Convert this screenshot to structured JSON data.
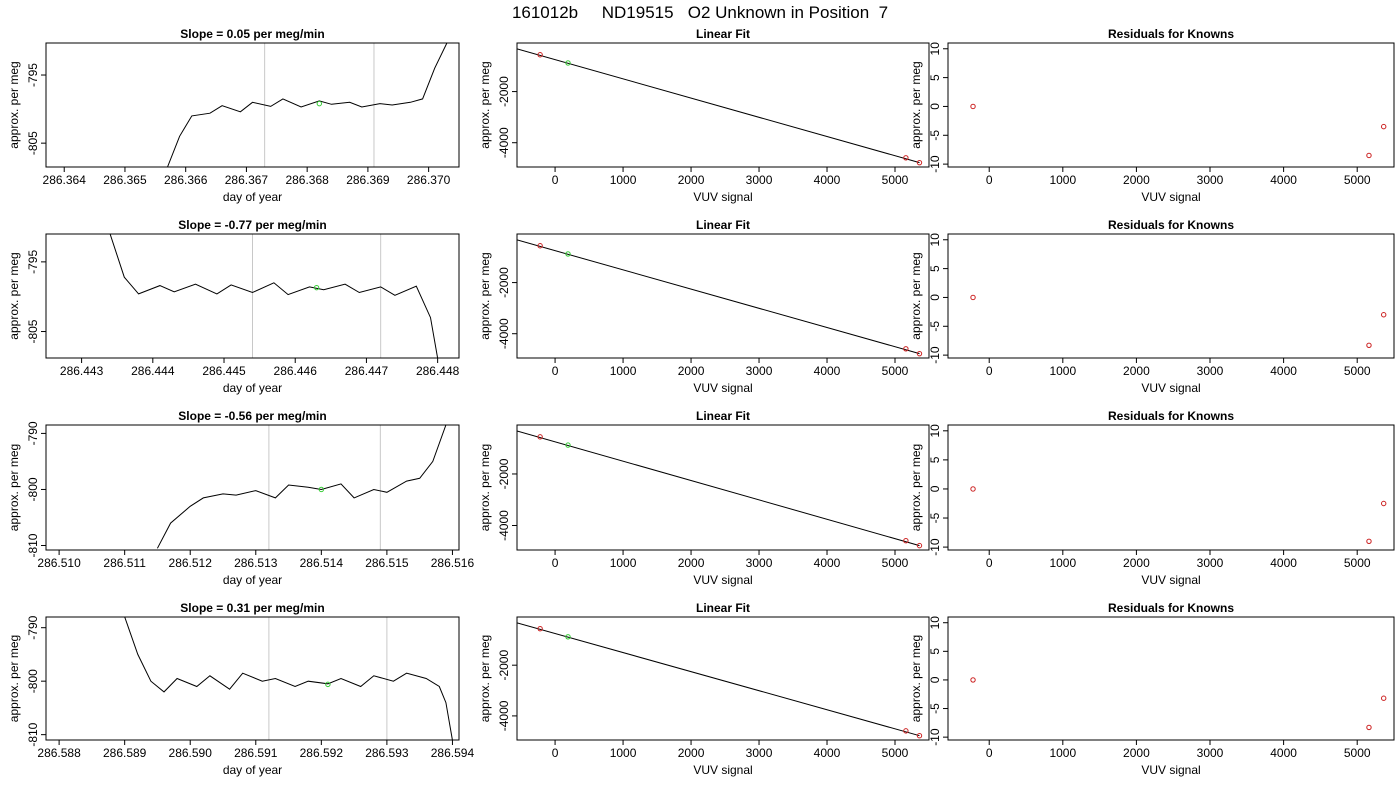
{
  "figure_title": "161012b     ND19515   O2 Unknown in Position  7",
  "chart_data": [
    {
      "type": "line",
      "panel": "timeseries",
      "title": "Slope =  0.05  per meg/min",
      "xlabel": "day of year",
      "ylabel": "approx. per meg",
      "xlim": [
        286.3637,
        286.3705
      ],
      "ylim": [
        -808.5,
        -790.3
      ],
      "xticks": [
        286.364,
        286.365,
        286.366,
        286.367,
        286.368,
        286.369,
        286.37
      ],
      "xtick_labels": [
        "286.364",
        "286.365",
        "286.366",
        "286.367",
        "286.368",
        "286.369",
        "286.370"
      ],
      "yticks": [
        -795,
        -805
      ],
      "ytick_labels": [
        "-795",
        "-805"
      ],
      "vlines": [
        286.3673,
        286.3691
      ],
      "series": [
        {
          "x": [
            286.3657,
            286.3659,
            286.3661,
            286.3664,
            286.3666,
            286.3669,
            286.3671,
            286.3674,
            286.3676,
            286.3679,
            286.3682,
            286.3684,
            286.3687,
            286.3689,
            286.3692,
            286.3694,
            286.3697,
            286.3699,
            286.3701,
            286.3703
          ],
          "y": [
            -808.5,
            -804.0,
            -801.0,
            -800.6,
            -799.5,
            -800.4,
            -799.0,
            -799.6,
            -798.5,
            -799.7,
            -798.8,
            -799.3,
            -799.0,
            -799.7,
            -799.2,
            -799.4,
            -799.0,
            -798.5,
            -794.0,
            -790.3
          ]
        }
      ],
      "green_point": {
        "x": 286.3682,
        "y": -799.2
      }
    },
    {
      "type": "scatter",
      "panel": "linear-fit",
      "title": "Linear Fit",
      "xlabel": "VUV signal",
      "ylabel": "approx. per meg",
      "xlim": [
        -560,
        5500
      ],
      "ylim": [
        -4950,
        -100
      ],
      "xticks": [
        0,
        1000,
        2000,
        3000,
        4000,
        5000
      ],
      "xtick_labels": [
        "0",
        "1000",
        "2000",
        "3000",
        "4000",
        "5000"
      ],
      "yticks": [
        -2000,
        -4000
      ],
      "ytick_labels": [
        "-2000",
        "-4000"
      ],
      "fit_line": {
        "x": [
          -560,
          5360
        ],
        "y": [
          -330,
          -4780
        ]
      },
      "known_points": {
        "x": [
          -220,
          5160,
          5360
        ],
        "y": [
          -560,
          -4590,
          -4780
        ]
      },
      "unknown_point": {
        "x": 190,
        "y": -880
      }
    },
    {
      "type": "scatter",
      "panel": "residuals",
      "title": "Residuals for Knowns",
      "xlabel": "VUV signal",
      "ylabel": "approx. per meg",
      "xlim": [
        -560,
        5500
      ],
      "ylim": [
        -10.5,
        11
      ],
      "xticks": [
        0,
        1000,
        2000,
        3000,
        4000,
        5000
      ],
      "xtick_labels": [
        "0",
        "1000",
        "2000",
        "3000",
        "4000",
        "5000"
      ],
      "yticks": [
        10,
        5,
        0,
        -5,
        -10
      ],
      "ytick_labels": [
        "10",
        "5",
        "0",
        "-5",
        "-10"
      ],
      "points": {
        "x": [
          -220,
          5160,
          5360
        ],
        "y": [
          0,
          -8.5,
          -3.5
        ]
      }
    },
    {
      "type": "line",
      "panel": "timeseries",
      "title": "Slope =  -0.77  per meg/min",
      "xlabel": "day of year",
      "ylabel": "approx. per meg",
      "xlim": [
        286.4425,
        286.4483
      ],
      "ylim": [
        -808.8,
        -791.0
      ],
      "xticks": [
        286.443,
        286.444,
        286.445,
        286.446,
        286.447,
        286.448
      ],
      "xtick_labels": [
        "286.443",
        "286.444",
        "286.445",
        "286.446",
        "286.447",
        "286.448"
      ],
      "yticks": [
        -795,
        -805
      ],
      "ytick_labels": [
        "-795",
        "-805"
      ],
      "vlines": [
        286.4454,
        286.4472
      ],
      "series": [
        {
          "x": [
            286.4434,
            286.4436,
            286.4438,
            286.4441,
            286.4443,
            286.4446,
            286.4449,
            286.4451,
            286.4454,
            286.4457,
            286.4459,
            286.4462,
            286.4464,
            286.4467,
            286.4469,
            286.4472,
            286.4474,
            286.4477,
            286.4479,
            286.448
          ],
          "y": [
            -791.0,
            -797.2,
            -799.6,
            -798.4,
            -799.3,
            -798.2,
            -799.6,
            -798.3,
            -799.4,
            -798.0,
            -799.7,
            -798.6,
            -799.0,
            -798.2,
            -799.4,
            -798.6,
            -799.8,
            -798.5,
            -803.0,
            -808.8
          ]
        }
      ],
      "green_point": {
        "x": 286.4463,
        "y": -798.7
      }
    },
    {
      "type": "scatter",
      "panel": "linear-fit",
      "title": "Linear Fit",
      "xlabel": "VUV signal",
      "ylabel": "approx. per meg",
      "xlim": [
        -560,
        5500
      ],
      "ylim": [
        -4950,
        -100
      ],
      "xticks": [
        0,
        1000,
        2000,
        3000,
        4000,
        5000
      ],
      "xtick_labels": [
        "0",
        "1000",
        "2000",
        "3000",
        "4000",
        "5000"
      ],
      "yticks": [
        -2000,
        -4000
      ],
      "ytick_labels": [
        "-2000",
        "-4000"
      ],
      "fit_line": {
        "x": [
          -560,
          5360
        ],
        "y": [
          -330,
          -4780
        ]
      },
      "known_points": {
        "x": [
          -220,
          5160,
          5360
        ],
        "y": [
          -560,
          -4590,
          -4780
        ]
      },
      "unknown_point": {
        "x": 190,
        "y": -880
      }
    },
    {
      "type": "scatter",
      "panel": "residuals",
      "title": "Residuals for Knowns",
      "xlabel": "VUV signal",
      "ylabel": "approx. per meg",
      "xlim": [
        -560,
        5500
      ],
      "ylim": [
        -10.5,
        11
      ],
      "xticks": [
        0,
        1000,
        2000,
        3000,
        4000,
        5000
      ],
      "xtick_labels": [
        "0",
        "1000",
        "2000",
        "3000",
        "4000",
        "5000"
      ],
      "yticks": [
        10,
        5,
        0,
        -5,
        -10
      ],
      "ytick_labels": [
        "10",
        "5",
        "0",
        "-5",
        "-10"
      ],
      "points": {
        "x": [
          -220,
          5160,
          5360
        ],
        "y": [
          0,
          -8.3,
          -3.0
        ]
      }
    },
    {
      "type": "line",
      "panel": "timeseries",
      "title": "Slope =  -0.56  per meg/min",
      "xlabel": "day of year",
      "ylabel": "approx. per meg",
      "xlim": [
        286.5098,
        286.5161
      ],
      "ylim": [
        -810.8,
        -788.5
      ],
      "xticks": [
        286.51,
        286.511,
        286.512,
        286.513,
        286.514,
        286.515,
        286.516
      ],
      "xtick_labels": [
        "286.510",
        "286.511",
        "286.512",
        "286.513",
        "286.514",
        "286.515",
        "286.516"
      ],
      "yticks": [
        -790,
        -800,
        -810
      ],
      "ytick_labels": [
        "-790",
        "-800",
        "-810"
      ],
      "vlines": [
        286.5132,
        286.5149
      ],
      "series": [
        {
          "x": [
            286.5115,
            286.5117,
            286.512,
            286.5122,
            286.5125,
            286.5127,
            286.513,
            286.5133,
            286.5135,
            286.5138,
            286.514,
            286.5143,
            286.5145,
            286.5148,
            286.515,
            286.5153,
            286.5155,
            286.5157,
            286.5159
          ],
          "y": [
            -810.5,
            -806.0,
            -803.0,
            -801.5,
            -800.8,
            -801.0,
            -800.2,
            -801.5,
            -799.2,
            -799.6,
            -800.0,
            -799.0,
            -801.5,
            -800.0,
            -800.5,
            -798.5,
            -798.0,
            -795.0,
            -788.5
          ]
        }
      ],
      "green_point": {
        "x": 286.514,
        "y": -800.0
      }
    },
    {
      "type": "scatter",
      "panel": "linear-fit",
      "title": "Linear Fit",
      "xlabel": "VUV signal",
      "ylabel": "approx. per meg",
      "xlim": [
        -560,
        5500
      ],
      "ylim": [
        -4950,
        -100
      ],
      "xticks": [
        0,
        1000,
        2000,
        3000,
        4000,
        5000
      ],
      "xtick_labels": [
        "0",
        "1000",
        "2000",
        "3000",
        "4000",
        "5000"
      ],
      "yticks": [
        -2000,
        -4000
      ],
      "ytick_labels": [
        "-2000",
        "-4000"
      ],
      "fit_line": {
        "x": [
          -560,
          5360
        ],
        "y": [
          -330,
          -4780
        ]
      },
      "known_points": {
        "x": [
          -220,
          5160,
          5360
        ],
        "y": [
          -560,
          -4590,
          -4780
        ]
      },
      "unknown_point": {
        "x": 190,
        "y": -880
      }
    },
    {
      "type": "scatter",
      "panel": "residuals",
      "title": "Residuals for Knowns",
      "xlabel": "VUV signal",
      "ylabel": "approx. per meg",
      "xlim": [
        -560,
        5500
      ],
      "ylim": [
        -10.5,
        11
      ],
      "xticks": [
        0,
        1000,
        2000,
        3000,
        4000,
        5000
      ],
      "xtick_labels": [
        "0",
        "1000",
        "2000",
        "3000",
        "4000",
        "5000"
      ],
      "yticks": [
        10,
        5,
        0,
        -5,
        -10
      ],
      "ytick_labels": [
        "10",
        "5",
        "0",
        "-5",
        "-10"
      ],
      "points": {
        "x": [
          -220,
          5160,
          5360
        ],
        "y": [
          0,
          -9.0,
          -2.5
        ]
      }
    },
    {
      "type": "line",
      "panel": "timeseries",
      "title": "Slope =  0.31  per meg/min",
      "xlabel": "day of year",
      "ylabel": "approx. per meg",
      "xlim": [
        286.5878,
        286.5941
      ],
      "ylim": [
        -811.0,
        -788.0
      ],
      "xticks": [
        286.588,
        286.589,
        286.59,
        286.591,
        286.592,
        286.593,
        286.594
      ],
      "xtick_labels": [
        "286.588",
        "286.589",
        "286.590",
        "286.591",
        "286.592",
        "286.593",
        "286.594"
      ],
      "yticks": [
        -790,
        -800,
        -810
      ],
      "ytick_labels": [
        "-790",
        "-800",
        "-810"
      ],
      "vlines": [
        286.5912,
        286.593
      ],
      "series": [
        {
          "x": [
            286.589,
            286.5892,
            286.5894,
            286.5896,
            286.5898,
            286.5901,
            286.5903,
            286.5906,
            286.5908,
            286.5911,
            286.5913,
            286.5916,
            286.5918,
            286.5921,
            286.5923,
            286.5926,
            286.5928,
            286.5931,
            286.5933,
            286.5936,
            286.5938,
            286.5939,
            286.594
          ],
          "y": [
            -788.0,
            -795.0,
            -800.0,
            -802.0,
            -799.5,
            -801.0,
            -799.0,
            -801.5,
            -798.5,
            -800.0,
            -799.5,
            -801.0,
            -800.0,
            -800.5,
            -799.5,
            -801.0,
            -799.0,
            -800.0,
            -798.5,
            -799.5,
            -801.0,
            -804.0,
            -811.0
          ]
        }
      ],
      "green_point": {
        "x": 286.5921,
        "y": -800.6
      }
    },
    {
      "type": "scatter",
      "panel": "linear-fit",
      "title": "Linear Fit",
      "xlabel": "VUV signal",
      "ylabel": "approx. per meg",
      "xlim": [
        -560,
        5500
      ],
      "ylim": [
        -4950,
        -100
      ],
      "xticks": [
        0,
        1000,
        2000,
        3000,
        4000,
        5000
      ],
      "xtick_labels": [
        "0",
        "1000",
        "2000",
        "3000",
        "4000",
        "5000"
      ],
      "yticks": [
        -2000,
        -4000
      ],
      "ytick_labels": [
        "-2000",
        "-4000"
      ],
      "fit_line": {
        "x": [
          -560,
          5360
        ],
        "y": [
          -330,
          -4780
        ]
      },
      "known_points": {
        "x": [
          -220,
          5160,
          5360
        ],
        "y": [
          -560,
          -4590,
          -4780
        ]
      },
      "unknown_point": {
        "x": 190,
        "y": -880
      }
    },
    {
      "type": "scatter",
      "panel": "residuals",
      "title": "Residuals for Knowns",
      "xlabel": "VUV signal",
      "ylabel": "approx. per meg",
      "xlim": [
        -560,
        5500
      ],
      "ylim": [
        -10.5,
        11
      ],
      "xticks": [
        0,
        1000,
        2000,
        3000,
        4000,
        5000
      ],
      "xtick_labels": [
        "0",
        "1000",
        "2000",
        "3000",
        "4000",
        "5000"
      ],
      "yticks": [
        10,
        5,
        0,
        -5,
        -10
      ],
      "ytick_labels": [
        "10",
        "5",
        "0",
        "-5",
        "-10"
      ],
      "points": {
        "x": [
          -220,
          5160,
          5360
        ],
        "y": [
          0,
          -8.3,
          -3.2
        ]
      }
    }
  ],
  "colors": {
    "line": "#000000",
    "axis": "#000000",
    "vline": "#c8c8c8",
    "known_marker": "#cc2222",
    "unknown_marker": "#33cc33",
    "text": "#000000"
  }
}
